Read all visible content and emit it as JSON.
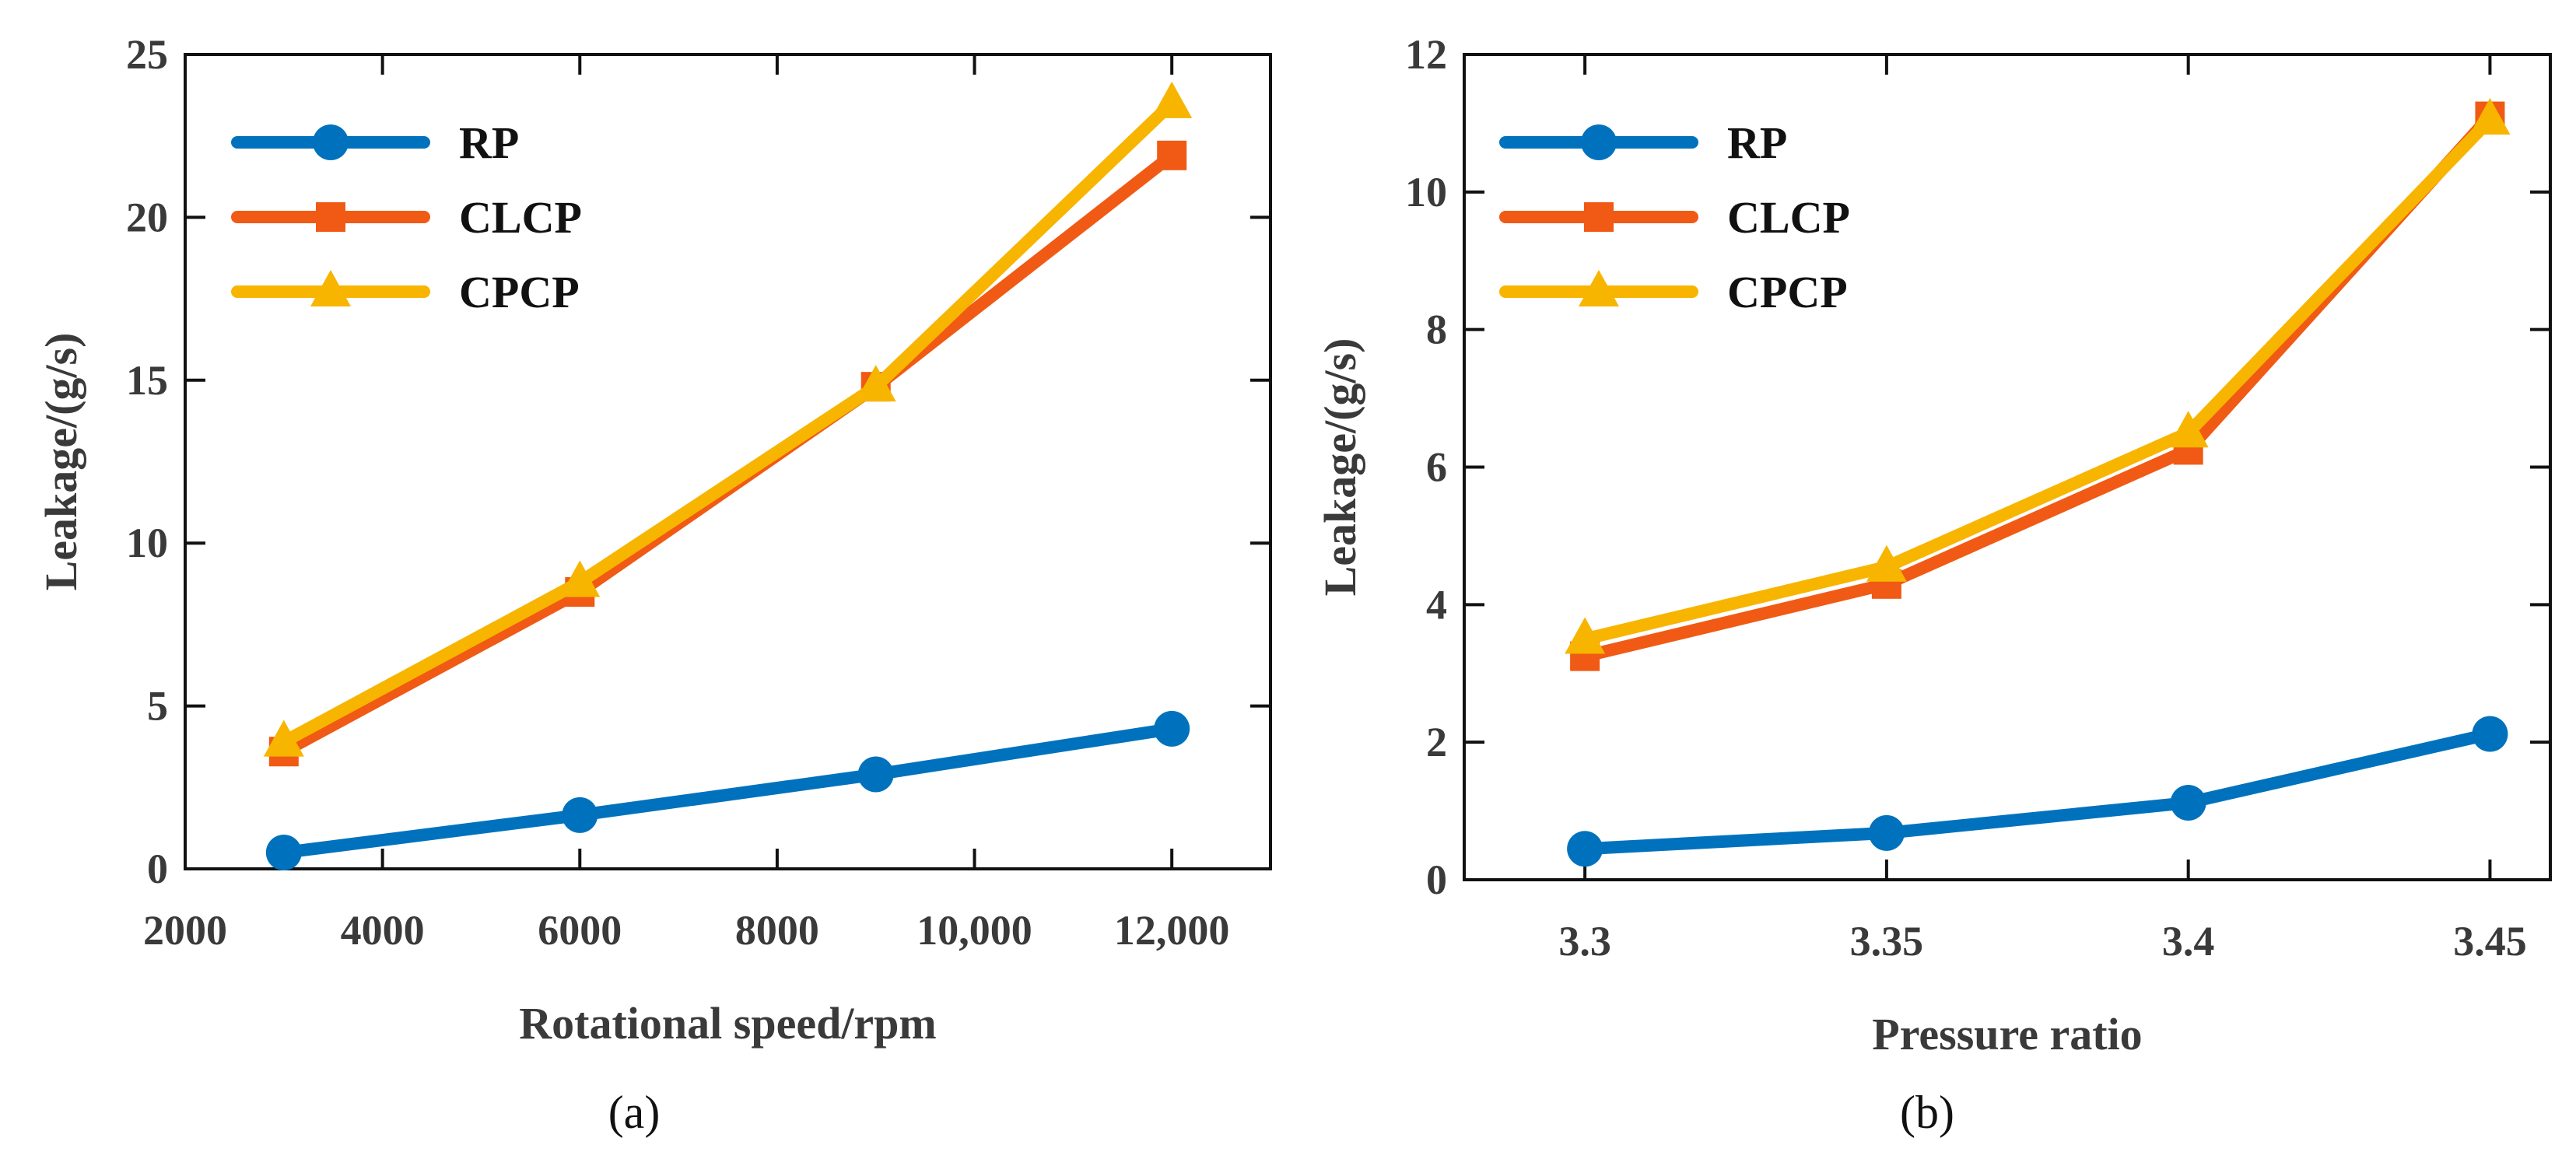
{
  "chart_data": [
    {
      "type": "line",
      "caption": "(a)",
      "xlabel": "Rotational speed/rpm",
      "ylabel": "Leakage/(g/s)",
      "xlim": [
        2000,
        13000
      ],
      "ylim": [
        0,
        25
      ],
      "xticks": [
        2000,
        4000,
        6000,
        8000,
        10000,
        12000
      ],
      "xtick_labels": [
        "2000",
        "4000",
        "6000",
        "8000",
        "10,000",
        "12,000"
      ],
      "yticks": [
        0,
        5,
        10,
        15,
        20,
        25
      ],
      "ytick_labels": [
        "0",
        "5",
        "10",
        "15",
        "20",
        "25"
      ],
      "legend_position": "top-left",
      "x": [
        3000,
        6000,
        9000,
        12000
      ],
      "series": [
        {
          "name": "RP",
          "color": "#0072BD",
          "marker": "circle",
          "values": [
            0.5,
            1.65,
            2.9,
            4.3
          ]
        },
        {
          "name": "CLCP",
          "color": "#F05A14",
          "marker": "square",
          "values": [
            3.6,
            8.5,
            14.8,
            21.9
          ]
        },
        {
          "name": "CPCP",
          "color": "#F7B500",
          "marker": "triangle",
          "values": [
            3.9,
            8.8,
            14.8,
            23.5
          ]
        }
      ]
    },
    {
      "type": "line",
      "caption": "(b)",
      "xlabel": "Pressure ratio",
      "ylabel": "Leakage/(g/s)",
      "xlim": [
        3.28,
        3.46
      ],
      "ylim": [
        0,
        12
      ],
      "xticks": [
        3.3,
        3.35,
        3.4,
        3.45
      ],
      "xtick_labels": [
        "3.3",
        "3.35",
        "3.4",
        "3.45"
      ],
      "yticks": [
        0,
        2,
        4,
        6,
        8,
        10,
        12
      ],
      "ytick_labels": [
        "0",
        "2",
        "4",
        "6",
        "8",
        "10",
        "12"
      ],
      "legend_position": "top-left",
      "x": [
        3.3,
        3.35,
        3.4,
        3.45
      ],
      "series": [
        {
          "name": "RP",
          "color": "#0072BD",
          "marker": "circle",
          "values": [
            0.45,
            0.68,
            1.12,
            2.12
          ]
        },
        {
          "name": "CLCP",
          "color": "#F05A14",
          "marker": "square",
          "values": [
            3.25,
            4.3,
            6.25,
            11.1
          ]
        },
        {
          "name": "CPCP",
          "color": "#F7B500",
          "marker": "triangle",
          "values": [
            3.5,
            4.55,
            6.5,
            11.05
          ]
        }
      ]
    }
  ]
}
